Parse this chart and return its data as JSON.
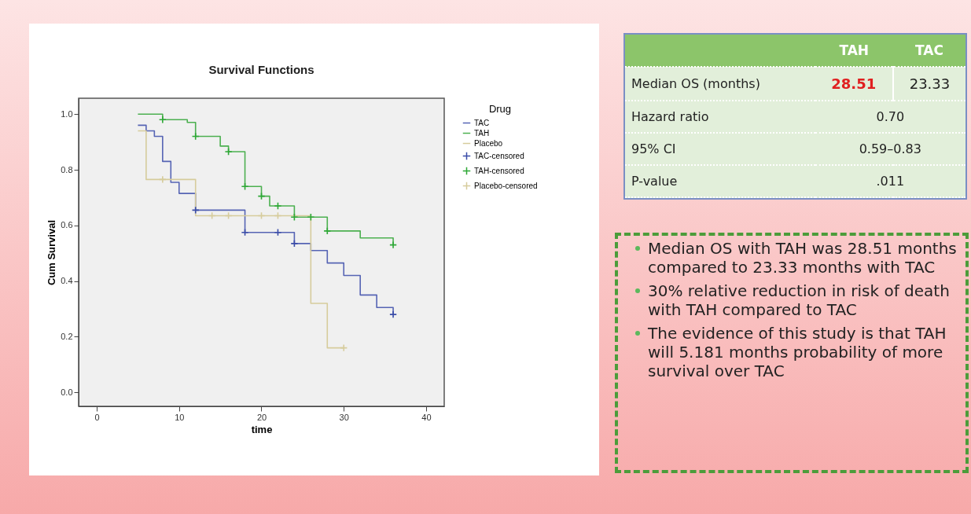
{
  "chart_data": [
    {
      "type": "step",
      "title": "Survival Functions",
      "xlabel": "time",
      "ylabel": "Cum Survival",
      "legend_title": "Drug",
      "legend": "right",
      "grid": false,
      "xlim": [
        -2.2,
        42.2
      ],
      "xticks": [
        0,
        10,
        20,
        30,
        40
      ],
      "ylim": [
        -0.05,
        1.057
      ],
      "yticks": [
        {
          "value": 0,
          "label": "0.0"
        },
        0.2,
        0.4,
        0.6,
        0.8,
        {
          "value": 1,
          "label": "1.0"
        }
      ],
      "series": [
        {
          "name": "TAC",
          "color": "#5664b4",
          "x": [
            5,
            6,
            7,
            8,
            9,
            10,
            12,
            18,
            24,
            26,
            28,
            30,
            32,
            34,
            36
          ],
          "values": [
            0.96,
            0.94,
            0.92,
            0.83,
            0.755,
            0.715,
            0.655,
            0.575,
            0.535,
            0.51,
            0.465,
            0.42,
            0.35,
            0.305,
            0.28
          ]
        },
        {
          "name": "TAH",
          "color": "#4cb050",
          "x": [
            5,
            8,
            11,
            12,
            15,
            16,
            18,
            20,
            21,
            24,
            28,
            32,
            36
          ],
          "values": [
            1.0,
            0.98,
            0.97,
            0.92,
            0.885,
            0.865,
            0.74,
            0.705,
            0.67,
            0.63,
            0.58,
            0.555,
            0.53
          ]
        },
        {
          "name": "Placebo",
          "color": "#d6cc9c",
          "x": [
            5,
            6,
            12,
            26,
            28,
            30
          ],
          "values": [
            0.94,
            0.765,
            0.635,
            0.32,
            0.16,
            0.16
          ]
        },
        {
          "name": "TAC-censored",
          "type": "scatter",
          "marker": "cross",
          "color": "#3a4ca8",
          "x": [
            12,
            18,
            22,
            24,
            36
          ],
          "values": [
            0.655,
            0.575,
            0.575,
            0.535,
            0.28
          ]
        },
        {
          "name": "TAH-censored",
          "type": "scatter",
          "marker": "cross",
          "color": "#2ea836",
          "x": [
            8,
            12,
            16,
            18,
            20,
            22,
            24,
            26,
            28,
            36
          ],
          "values": [
            0.98,
            0.92,
            0.865,
            0.74,
            0.705,
            0.67,
            0.63,
            0.63,
            0.58,
            0.53
          ]
        },
        {
          "name": "Placebo-censored",
          "type": "scatter",
          "marker": "cross",
          "color": "#d6cc9c",
          "x": [
            8,
            14,
            16,
            20,
            22,
            30
          ],
          "values": [
            0.765,
            0.635,
            0.635,
            0.635,
            0.635,
            0.16
          ]
        }
      ]
    },
    {
      "type": "other",
      "annotations": [
        "TAH",
        "TAC",
        "Median OS (months)",
        "28.51",
        "23.33",
        "Hazard ratio",
        "0.70",
        "95% CI",
        "0.59–0.83",
        "P-value",
        ".011"
      ]
    },
    {
      "type": "other",
      "annotations": [
        "Median OS with TAH was 28.51 months compared to 23.33 months with TAC",
        "30% relative reduction in risk of death with TAH compared to TAC",
        "The evidence of this study is that TAH will 5.181 months probability of more survival over TAC"
      ]
    }
  ]
}
